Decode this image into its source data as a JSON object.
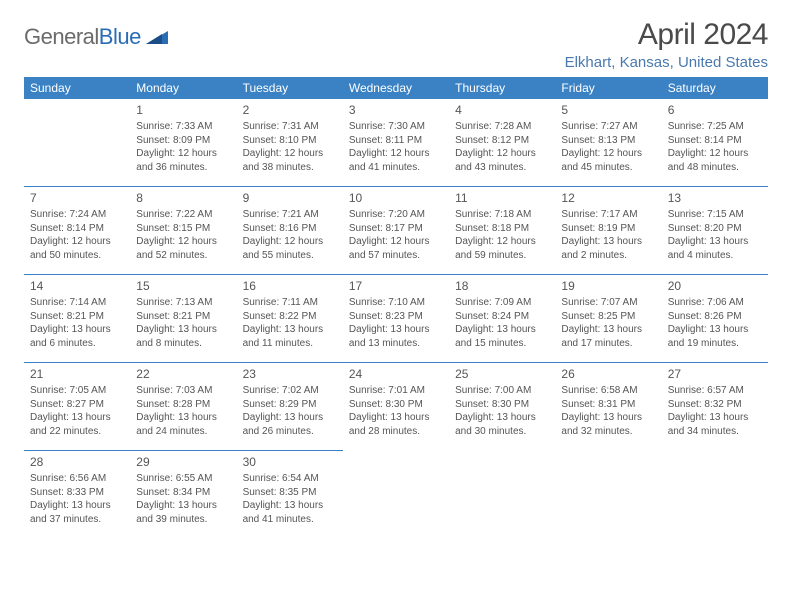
{
  "logo": {
    "word1": "General",
    "word2": "Blue"
  },
  "title": "April 2024",
  "location": "Elkhart, Kansas, United States",
  "header_bg": "#3b82c4",
  "header_fg": "#ffffff",
  "rule_color": "#3b82c4",
  "accent_color": "#4979ae",
  "weekdays": [
    "Sunday",
    "Monday",
    "Tuesday",
    "Wednesday",
    "Thursday",
    "Friday",
    "Saturday"
  ],
  "weeks": [
    [
      null,
      {
        "n": "1",
        "sr": "Sunrise: 7:33 AM",
        "ss": "Sunset: 8:09 PM",
        "d1": "Daylight: 12 hours",
        "d2": "and 36 minutes."
      },
      {
        "n": "2",
        "sr": "Sunrise: 7:31 AM",
        "ss": "Sunset: 8:10 PM",
        "d1": "Daylight: 12 hours",
        "d2": "and 38 minutes."
      },
      {
        "n": "3",
        "sr": "Sunrise: 7:30 AM",
        "ss": "Sunset: 8:11 PM",
        "d1": "Daylight: 12 hours",
        "d2": "and 41 minutes."
      },
      {
        "n": "4",
        "sr": "Sunrise: 7:28 AM",
        "ss": "Sunset: 8:12 PM",
        "d1": "Daylight: 12 hours",
        "d2": "and 43 minutes."
      },
      {
        "n": "5",
        "sr": "Sunrise: 7:27 AM",
        "ss": "Sunset: 8:13 PM",
        "d1": "Daylight: 12 hours",
        "d2": "and 45 minutes."
      },
      {
        "n": "6",
        "sr": "Sunrise: 7:25 AM",
        "ss": "Sunset: 8:14 PM",
        "d1": "Daylight: 12 hours",
        "d2": "and 48 minutes."
      }
    ],
    [
      {
        "n": "7",
        "sr": "Sunrise: 7:24 AM",
        "ss": "Sunset: 8:14 PM",
        "d1": "Daylight: 12 hours",
        "d2": "and 50 minutes."
      },
      {
        "n": "8",
        "sr": "Sunrise: 7:22 AM",
        "ss": "Sunset: 8:15 PM",
        "d1": "Daylight: 12 hours",
        "d2": "and 52 minutes."
      },
      {
        "n": "9",
        "sr": "Sunrise: 7:21 AM",
        "ss": "Sunset: 8:16 PM",
        "d1": "Daylight: 12 hours",
        "d2": "and 55 minutes."
      },
      {
        "n": "10",
        "sr": "Sunrise: 7:20 AM",
        "ss": "Sunset: 8:17 PM",
        "d1": "Daylight: 12 hours",
        "d2": "and 57 minutes."
      },
      {
        "n": "11",
        "sr": "Sunrise: 7:18 AM",
        "ss": "Sunset: 8:18 PM",
        "d1": "Daylight: 12 hours",
        "d2": "and 59 minutes."
      },
      {
        "n": "12",
        "sr": "Sunrise: 7:17 AM",
        "ss": "Sunset: 8:19 PM",
        "d1": "Daylight: 13 hours",
        "d2": "and 2 minutes."
      },
      {
        "n": "13",
        "sr": "Sunrise: 7:15 AM",
        "ss": "Sunset: 8:20 PM",
        "d1": "Daylight: 13 hours",
        "d2": "and 4 minutes."
      }
    ],
    [
      {
        "n": "14",
        "sr": "Sunrise: 7:14 AM",
        "ss": "Sunset: 8:21 PM",
        "d1": "Daylight: 13 hours",
        "d2": "and 6 minutes."
      },
      {
        "n": "15",
        "sr": "Sunrise: 7:13 AM",
        "ss": "Sunset: 8:21 PM",
        "d1": "Daylight: 13 hours",
        "d2": "and 8 minutes."
      },
      {
        "n": "16",
        "sr": "Sunrise: 7:11 AM",
        "ss": "Sunset: 8:22 PM",
        "d1": "Daylight: 13 hours",
        "d2": "and 11 minutes."
      },
      {
        "n": "17",
        "sr": "Sunrise: 7:10 AM",
        "ss": "Sunset: 8:23 PM",
        "d1": "Daylight: 13 hours",
        "d2": "and 13 minutes."
      },
      {
        "n": "18",
        "sr": "Sunrise: 7:09 AM",
        "ss": "Sunset: 8:24 PM",
        "d1": "Daylight: 13 hours",
        "d2": "and 15 minutes."
      },
      {
        "n": "19",
        "sr": "Sunrise: 7:07 AM",
        "ss": "Sunset: 8:25 PM",
        "d1": "Daylight: 13 hours",
        "d2": "and 17 minutes."
      },
      {
        "n": "20",
        "sr": "Sunrise: 7:06 AM",
        "ss": "Sunset: 8:26 PM",
        "d1": "Daylight: 13 hours",
        "d2": "and 19 minutes."
      }
    ],
    [
      {
        "n": "21",
        "sr": "Sunrise: 7:05 AM",
        "ss": "Sunset: 8:27 PM",
        "d1": "Daylight: 13 hours",
        "d2": "and 22 minutes."
      },
      {
        "n": "22",
        "sr": "Sunrise: 7:03 AM",
        "ss": "Sunset: 8:28 PM",
        "d1": "Daylight: 13 hours",
        "d2": "and 24 minutes."
      },
      {
        "n": "23",
        "sr": "Sunrise: 7:02 AM",
        "ss": "Sunset: 8:29 PM",
        "d1": "Daylight: 13 hours",
        "d2": "and 26 minutes."
      },
      {
        "n": "24",
        "sr": "Sunrise: 7:01 AM",
        "ss": "Sunset: 8:30 PM",
        "d1": "Daylight: 13 hours",
        "d2": "and 28 minutes."
      },
      {
        "n": "25",
        "sr": "Sunrise: 7:00 AM",
        "ss": "Sunset: 8:30 PM",
        "d1": "Daylight: 13 hours",
        "d2": "and 30 minutes."
      },
      {
        "n": "26",
        "sr": "Sunrise: 6:58 AM",
        "ss": "Sunset: 8:31 PM",
        "d1": "Daylight: 13 hours",
        "d2": "and 32 minutes."
      },
      {
        "n": "27",
        "sr": "Sunrise: 6:57 AM",
        "ss": "Sunset: 8:32 PM",
        "d1": "Daylight: 13 hours",
        "d2": "and 34 minutes."
      }
    ],
    [
      {
        "n": "28",
        "sr": "Sunrise: 6:56 AM",
        "ss": "Sunset: 8:33 PM",
        "d1": "Daylight: 13 hours",
        "d2": "and 37 minutes."
      },
      {
        "n": "29",
        "sr": "Sunrise: 6:55 AM",
        "ss": "Sunset: 8:34 PM",
        "d1": "Daylight: 13 hours",
        "d2": "and 39 minutes."
      },
      {
        "n": "30",
        "sr": "Sunrise: 6:54 AM",
        "ss": "Sunset: 8:35 PM",
        "d1": "Daylight: 13 hours",
        "d2": "and 41 minutes."
      },
      null,
      null,
      null,
      null
    ]
  ]
}
